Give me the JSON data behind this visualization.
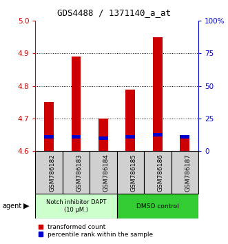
{
  "title": "GDS4488 / 1371140_a_at",
  "samples": [
    "GSM786182",
    "GSM786183",
    "GSM786184",
    "GSM786185",
    "GSM786186",
    "GSM786187"
  ],
  "red_values": [
    4.75,
    4.89,
    4.7,
    4.79,
    4.95,
    4.65
  ],
  "blue_values": [
    4.645,
    4.645,
    4.64,
    4.645,
    4.65,
    4.645
  ],
  "base_value": 4.6,
  "ylim_left": [
    4.6,
    5.0
  ],
  "ylim_right": [
    0,
    100
  ],
  "left_ticks": [
    4.6,
    4.7,
    4.8,
    4.9,
    5.0
  ],
  "right_ticks": [
    0,
    25,
    50,
    75,
    100
  ],
  "right_tick_labels": [
    "0",
    "25",
    "50",
    "75",
    "100%"
  ],
  "left_tick_color": "#cc0000",
  "right_tick_color": "#0000cc",
  "bar_color": "#cc0000",
  "blue_marker_color": "#0000cc",
  "group1_label": "Notch inhibitor DAPT\n(10 μM.)",
  "group2_label": "DMSO control",
  "group1_color": "#ccffcc",
  "group2_color": "#33cc33",
  "legend_red": "transformed count",
  "legend_blue": "percentile rank within the sample",
  "agent_label": "agent",
  "background_color": "#ffffff",
  "plot_bg": "#ffffff",
  "bar_width": 0.35,
  "blue_bar_height": 0.01,
  "grid_lines": [
    4.7,
    4.8,
    4.9
  ],
  "sample_box_color": "#d0d0d0",
  "sample_box_edge": "#888888"
}
